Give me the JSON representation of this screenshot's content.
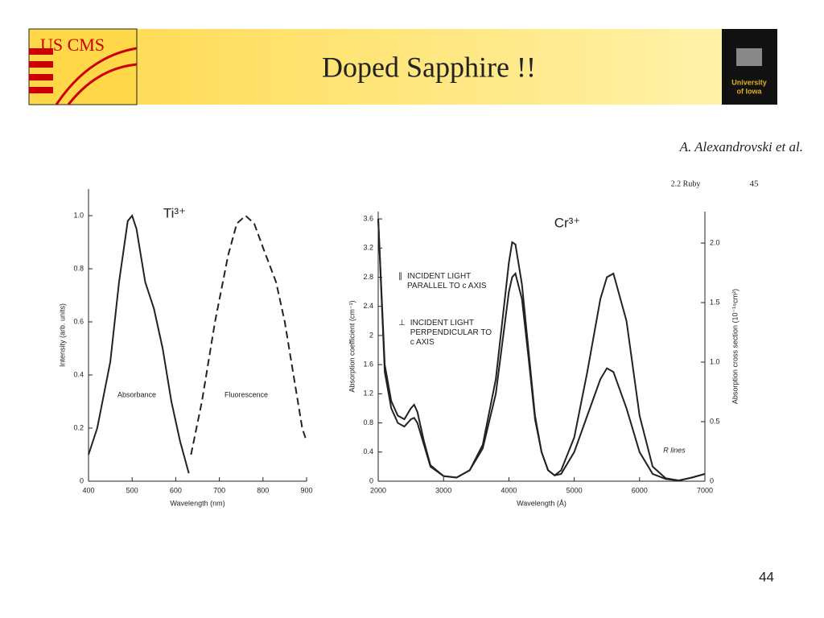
{
  "slide": {
    "title": "Doped Sapphire !!",
    "citation": "A. Alexandrovski et al.",
    "page_number": "44",
    "left_logo": "US CMS",
    "right_logo_line1": "University",
    "right_logo_line2": "of Iowa"
  },
  "chart_data": [
    {
      "type": "line",
      "annotation": "Ti³⁺",
      "x_label": "Wavelength (nm)",
      "y_label": "Intensity (arb. units)",
      "xlim": [
        400,
        900
      ],
      "xticks": [
        400,
        500,
        600,
        700,
        800,
        900
      ],
      "ylim": [
        0,
        1.1
      ],
      "yticks": [
        0,
        {
          "value": 0.2,
          "label": "0.2"
        },
        {
          "value": 0.4,
          "label": "0.4"
        },
        {
          "value": 0.6,
          "label": "0.6"
        },
        {
          "value": 0.8,
          "label": "0.8"
        },
        {
          "value": 1,
          "label": "1.0"
        }
      ],
      "series": [
        {
          "name": "Absorbance",
          "color": "#222222",
          "dash": false,
          "x": [
            400,
            420,
            450,
            470,
            490,
            500,
            510,
            530,
            550,
            570,
            590,
            610,
            630
          ],
          "values": [
            0.1,
            0.2,
            0.45,
            0.75,
            0.98,
            1.0,
            0.95,
            0.75,
            0.65,
            0.5,
            0.3,
            0.15,
            0.03
          ]
        },
        {
          "name": "Fluorescence",
          "color": "#222222",
          "dash": true,
          "x": [
            635,
            660,
            690,
            720,
            740,
            760,
            780,
            800,
            830,
            850,
            870,
            890,
            900
          ],
          "values": [
            0.1,
            0.3,
            0.6,
            0.85,
            0.97,
            1.0,
            0.97,
            0.88,
            0.75,
            0.6,
            0.4,
            0.2,
            0.15
          ]
        }
      ]
    },
    {
      "type": "line",
      "book_header": "2.2 Ruby",
      "book_page": "45",
      "annotation": "Cr³⁺",
      "r_lines_label": "R lines",
      "x_label": "Wavelength (Å)",
      "y_label": "Absorption coefficient (cm⁻¹)",
      "y2_label": "Absorption cross section (10⁻¹⁹cm²)",
      "xlim": [
        2000,
        7000
      ],
      "xticks": [
        2000,
        3000,
        4000,
        5000,
        6000,
        7000
      ],
      "ylim": [
        0,
        3.7
      ],
      "yticks": [
        0,
        0.4,
        0.8,
        1.2,
        1.6,
        2,
        2.4,
        2.8,
        3.2,
        3.6
      ],
      "y2lim": [
        0,
        2.264
      ],
      "y2ticks": [
        0,
        0.5,
        {
          "value": 1,
          "label": "1.0"
        },
        1.5,
        {
          "value": 2,
          "label": "2.0"
        }
      ],
      "x": [
        2000,
        2100,
        2200,
        2300,
        2400,
        2500,
        2550,
        2600,
        2700,
        2800,
        3000,
        3200,
        3400,
        3600,
        3800,
        3900,
        4000,
        4050,
        4100,
        4200,
        4300,
        4400,
        4500,
        4600,
        4700,
        4800,
        5000,
        5200,
        5400,
        5500,
        5600,
        5800,
        6000,
        6200,
        6400,
        6600,
        6800,
        7000
      ],
      "series": [
        {
          "name": "INCIDENT LIGHT PARALLEL TO c AXIS",
          "symbol": "∥",
          "color": "#222222",
          "values": [
            3.6,
            1.6,
            1.1,
            0.9,
            0.85,
            1.0,
            1.05,
            0.95,
            0.55,
            0.22,
            0.07,
            0.05,
            0.15,
            0.45,
            1.2,
            1.9,
            2.6,
            2.8,
            2.85,
            2.5,
            1.7,
            0.85,
            0.4,
            0.15,
            0.08,
            0.15,
            0.6,
            1.5,
            2.5,
            2.8,
            2.85,
            2.2,
            0.9,
            0.2,
            0.04,
            0.01,
            0.05,
            0.1
          ]
        },
        {
          "name": "INCIDENT LIGHT PERPENDICULAR TO c AXIS",
          "symbol": "⊥",
          "color": "#222222",
          "values": [
            3.6,
            1.5,
            1.0,
            0.8,
            0.75,
            0.85,
            0.87,
            0.8,
            0.5,
            0.2,
            0.07,
            0.05,
            0.15,
            0.5,
            1.4,
            2.2,
            3.0,
            3.28,
            3.25,
            2.7,
            1.8,
            0.9,
            0.4,
            0.15,
            0.08,
            0.1,
            0.4,
            0.9,
            1.4,
            1.55,
            1.5,
            1.0,
            0.4,
            0.1,
            0.03,
            0.01,
            0.05,
            0.1
          ]
        }
      ]
    }
  ]
}
